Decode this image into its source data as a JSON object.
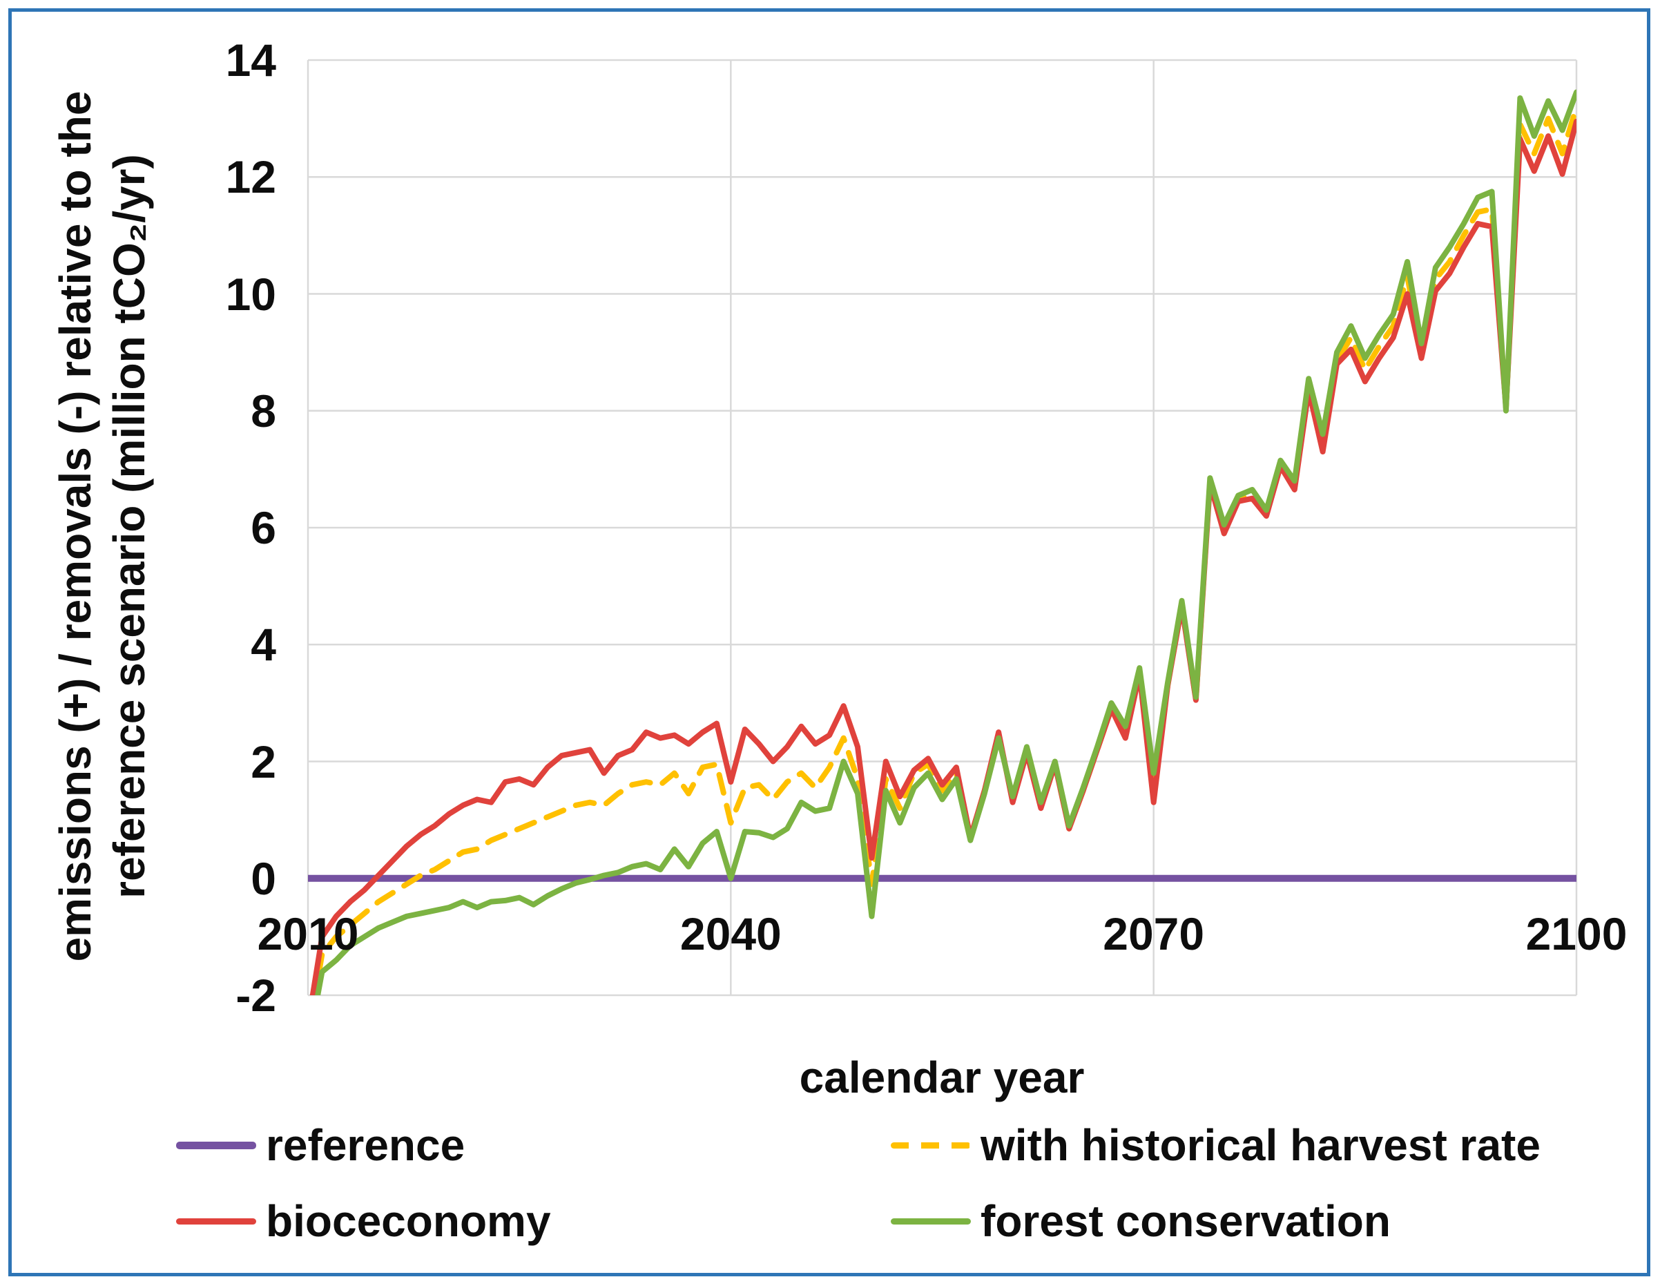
{
  "frame": {
    "border_color": "#2E75B6"
  },
  "chart_data": {
    "type": "line",
    "title": "",
    "xlabel": "calendar year",
    "ylabel_line1": "emissions (+) / removals (-) relative to the",
    "ylabel_line2": "reference scenario (million tCO₂/yr)",
    "xlim": [
      2010,
      2100
    ],
    "ylim": [
      -2,
      14
    ],
    "grid": true,
    "legend_position": "bottom",
    "grid_color": "#D9D9D9",
    "x_ticks": [
      "2010",
      "2040",
      "2070",
      "2100"
    ],
    "y_ticks": [
      "14",
      "12",
      "10",
      "8",
      "6",
      "4",
      "2",
      "0",
      "-2"
    ],
    "x_start": 2010,
    "x_step": 1,
    "series": [
      {
        "name": "reference",
        "color": "#7552A1",
        "dash": "solid",
        "width": 10,
        "values": [
          0,
          0,
          0,
          0,
          0,
          0,
          0,
          0,
          0,
          0,
          0,
          0,
          0,
          0,
          0,
          0,
          0,
          0,
          0,
          0,
          0,
          0,
          0,
          0,
          0,
          0,
          0,
          0,
          0,
          0,
          0,
          0,
          0,
          0,
          0,
          0,
          0,
          0,
          0,
          0,
          0,
          0,
          0,
          0,
          0,
          0,
          0,
          0,
          0,
          0,
          0,
          0,
          0,
          0,
          0,
          0,
          0,
          0,
          0,
          0,
          0,
          0,
          0,
          0,
          0,
          0,
          0,
          0,
          0,
          0,
          0,
          0,
          0,
          0,
          0,
          0,
          0,
          0,
          0,
          0,
          0,
          0,
          0,
          0,
          0,
          0,
          0,
          0,
          0,
          0,
          0
        ]
      },
      {
        "name": "with historical harvest rate",
        "color": "#FFC000",
        "dash": "dashed",
        "width": 8,
        "values": [
          -2.7,
          -1.3,
          -1.0,
          -0.8,
          -0.6,
          -0.4,
          -0.25,
          -0.1,
          0.05,
          0.15,
          0.3,
          0.45,
          0.5,
          0.65,
          0.75,
          0.85,
          0.95,
          1.05,
          1.15,
          1.25,
          1.3,
          1.25,
          1.45,
          1.6,
          1.65,
          1.6,
          1.8,
          1.45,
          1.9,
          1.95,
          0.95,
          1.55,
          1.6,
          1.35,
          1.65,
          1.8,
          1.55,
          1.9,
          2.4,
          1.7,
          -0.1,
          1.7,
          1.2,
          1.8,
          1.95,
          1.5,
          1.8,
          0.7,
          1.5,
          2.45,
          1.35,
          2.2,
          1.25,
          1.95,
          0.85,
          1.5,
          2.2,
          2.9,
          2.5,
          3.55,
          1.55,
          3.3,
          4.7,
          3.05,
          6.8,
          5.95,
          6.5,
          6.55,
          6.25,
          7.1,
          6.7,
          8.45,
          7.45,
          8.85,
          9.25,
          8.7,
          9.1,
          9.45,
          10.3,
          9.0,
          10.25,
          10.55,
          11.0,
          11.4,
          11.45,
          8.05,
          12.9,
          12.4,
          13.0,
          12.4,
          13.2
        ]
      },
      {
        "name": "bioceconomy",
        "color": "#E0423C",
        "dash": "solid",
        "width": 8,
        "values": [
          -2.5,
          -1.0,
          -0.65,
          -0.4,
          -0.2,
          0.05,
          0.3,
          0.55,
          0.75,
          0.9,
          1.1,
          1.25,
          1.35,
          1.3,
          1.65,
          1.7,
          1.6,
          1.9,
          2.1,
          2.15,
          2.2,
          1.8,
          2.1,
          2.2,
          2.5,
          2.4,
          2.45,
          2.3,
          2.5,
          2.65,
          1.65,
          2.55,
          2.3,
          2.0,
          2.25,
          2.6,
          2.3,
          2.45,
          2.95,
          2.25,
          0.35,
          2.0,
          1.4,
          1.85,
          2.05,
          1.6,
          1.9,
          0.7,
          1.5,
          2.5,
          1.3,
          2.15,
          1.2,
          1.95,
          0.85,
          1.5,
          2.2,
          2.9,
          2.4,
          3.5,
          1.3,
          3.3,
          4.65,
          3.05,
          6.75,
          5.9,
          6.45,
          6.5,
          6.2,
          7.05,
          6.65,
          8.35,
          7.3,
          8.8,
          9.05,
          8.5,
          8.9,
          9.25,
          10.0,
          8.9,
          10.05,
          10.35,
          10.8,
          11.2,
          11.15,
          8.05,
          12.65,
          12.1,
          12.7,
          12.05,
          12.95
        ]
      },
      {
        "name": "forest conservation",
        "color": "#7CB342",
        "dash": "solid",
        "width": 8,
        "values": [
          -2.9,
          -1.6,
          -1.4,
          -1.15,
          -1.0,
          -0.85,
          -0.75,
          -0.65,
          -0.6,
          -0.55,
          -0.5,
          -0.4,
          -0.5,
          -0.4,
          -0.38,
          -0.33,
          -0.45,
          -0.3,
          -0.18,
          -0.08,
          -0.02,
          0.05,
          0.1,
          0.2,
          0.25,
          0.15,
          0.5,
          0.2,
          0.6,
          0.8,
          0.0,
          0.8,
          0.78,
          0.7,
          0.85,
          1.3,
          1.15,
          1.2,
          2.0,
          1.45,
          -0.65,
          1.5,
          0.95,
          1.55,
          1.8,
          1.35,
          1.7,
          0.65,
          1.45,
          2.4,
          1.4,
          2.25,
          1.3,
          2.0,
          0.9,
          1.55,
          2.25,
          3.0,
          2.6,
          3.6,
          1.8,
          3.35,
          4.75,
          3.1,
          6.85,
          6.05,
          6.55,
          6.65,
          6.3,
          7.15,
          6.8,
          8.55,
          7.6,
          9.0,
          9.45,
          8.9,
          9.3,
          9.65,
          10.55,
          9.15,
          10.45,
          10.8,
          11.2,
          11.65,
          11.75,
          8.0,
          13.35,
          12.7,
          13.3,
          12.8,
          13.45
        ]
      }
    ]
  }
}
